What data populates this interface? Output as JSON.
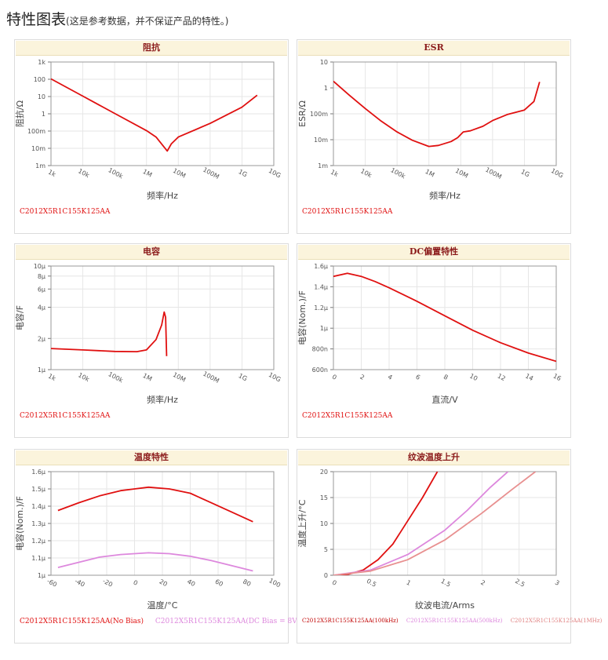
{
  "page": {
    "title": "特性图表",
    "subtitle": "(这是参考数据，并不保证产品的特性。)"
  },
  "chart_data": [
    {
      "id": "impedance",
      "type": "line",
      "title": "阻抗",
      "xlabel": "频率/Hz",
      "ylabel": "阻抗/Ω",
      "xscale": "log",
      "yscale": "log",
      "xlim": [
        1000,
        10000000000
      ],
      "ylim": [
        0.001,
        1000
      ],
      "xticks": [
        "1k",
        "10k",
        "100k",
        "1M",
        "10M",
        "100M",
        "1G",
        "10G"
      ],
      "yticks": [
        "1m",
        "10m",
        "100m",
        "1",
        "10",
        "100",
        "1k"
      ],
      "grid": true,
      "series": [
        {
          "name": "C2012X5R1C155K125AA",
          "color": "#e01010",
          "x": [
            1000,
            10000,
            100000,
            1000000,
            2000000,
            3500000,
            4500000,
            6000000,
            10000000,
            100000000,
            1000000000,
            3000000000
          ],
          "y": [
            105,
            10.5,
            1.05,
            0.107,
            0.045,
            0.0125,
            0.007,
            0.018,
            0.045,
            0.28,
            2.4,
            12
          ]
        }
      ]
    },
    {
      "id": "esr",
      "type": "line",
      "title": "ESR",
      "xlabel": "频率/Hz",
      "ylabel": "ESR/Ω",
      "xscale": "log",
      "yscale": "log",
      "xlim": [
        1000,
        10000000000
      ],
      "ylim": [
        0.001,
        10
      ],
      "xticks": [
        "1k",
        "10k",
        "100k",
        "1M",
        "10M",
        "100M",
        "1G",
        "10G"
      ],
      "yticks": [
        "1m",
        "10m",
        "100m",
        "1",
        "10"
      ],
      "grid": true,
      "series": [
        {
          "name": "C2012X5R1C155K125AA",
          "color": "#e01010",
          "x": [
            1000,
            3000,
            10000,
            30000,
            100000,
            300000,
            1000000,
            2000000,
            5000000,
            8000000,
            12000000,
            20000000,
            50000000,
            100000000,
            300000000,
            1000000000,
            2000000000,
            3000000000
          ],
          "y": [
            1.8,
            0.55,
            0.16,
            0.055,
            0.02,
            0.0095,
            0.0055,
            0.006,
            0.0085,
            0.012,
            0.02,
            0.022,
            0.033,
            0.055,
            0.095,
            0.14,
            0.3,
            1.7
          ]
        }
      ]
    },
    {
      "id": "capacitance",
      "type": "line",
      "title": "电容",
      "xlabel": "频率/Hz",
      "ylabel": "电容/F",
      "xscale": "log",
      "yscale": "log",
      "xlim": [
        1000,
        10000000000
      ],
      "ylim": [
        1,
        10
      ],
      "xticks": [
        "1k",
        "10k",
        "100k",
        "1M",
        "10M",
        "100M",
        "1G",
        "10G"
      ],
      "yticks": [
        "1μ",
        "2μ",
        "4μ",
        "6μ",
        "8μ",
        "10μ"
      ],
      "grid": true,
      "series": [
        {
          "name": "C2012X5R1C155K125AA",
          "color": "#e01010",
          "x": [
            1000,
            10000,
            100000,
            500000,
            1000000,
            2000000,
            3000000,
            3600000,
            4000000,
            4300000
          ],
          "y": [
            1.6,
            1.55,
            1.5,
            1.49,
            1.55,
            1.95,
            2.7,
            3.6,
            3.2,
            1.35
          ]
        }
      ]
    },
    {
      "id": "dc_bias",
      "type": "line",
      "title": "DC偏置特性",
      "xlabel": "直流/V",
      "ylabel": "电容(Nom.)/F",
      "xlim": [
        0,
        16
      ],
      "ylim": [
        0.6,
        1.6
      ],
      "xticks": [
        "0",
        "2",
        "4",
        "6",
        "8",
        "10",
        "12",
        "14",
        "16"
      ],
      "yticks": [
        "600n",
        "800n",
        "1μ",
        "1.2μ",
        "1.4μ",
        "1.6μ"
      ],
      "grid": true,
      "series": [
        {
          "name": "C2012X5R1C155K125AA",
          "color": "#e01010",
          "x": [
            0,
            1,
            2,
            3,
            4,
            6,
            8,
            10,
            12,
            14,
            16
          ],
          "y": [
            1.5,
            1.53,
            1.5,
            1.45,
            1.39,
            1.26,
            1.12,
            0.98,
            0.86,
            0.76,
            0.68
          ]
        }
      ]
    },
    {
      "id": "temperature",
      "type": "line",
      "title": "温度特性",
      "xlabel": "温度/°C",
      "ylabel": "电容(Nom.)/F",
      "xlim": [
        -60,
        100
      ],
      "ylim": [
        1.0,
        1.6
      ],
      "xticks": [
        "-60",
        "-40",
        "-20",
        "0",
        "20",
        "40",
        "60",
        "80",
        "100"
      ],
      "yticks": [
        "1μ",
        "1.1μ",
        "1.2μ",
        "1.3μ",
        "1.4μ",
        "1.5μ",
        "1.6μ"
      ],
      "grid": true,
      "series": [
        {
          "name": "C2012X5R1C155K125AA(No Bias)",
          "color": "#e01010",
          "x": [
            -55,
            -40,
            -25,
            -10,
            0,
            10,
            25,
            40,
            55,
            70,
            85
          ],
          "y": [
            1.375,
            1.42,
            1.46,
            1.49,
            1.5,
            1.51,
            1.5,
            1.475,
            1.42,
            1.365,
            1.31
          ]
        },
        {
          "name": "C2012X5R1C155K125AA(DC Bias = 8V )",
          "color": "#dd88dd",
          "x": [
            -55,
            -40,
            -25,
            -10,
            0,
            10,
            25,
            40,
            55,
            70,
            85
          ],
          "y": [
            1.045,
            1.075,
            1.105,
            1.12,
            1.125,
            1.13,
            1.125,
            1.11,
            1.085,
            1.055,
            1.025
          ]
        }
      ]
    },
    {
      "id": "ripple",
      "type": "line",
      "title": "纹波温度上升",
      "xlabel": "纹波电流/Arms",
      "ylabel": "温度上升/°C",
      "xlim": [
        0,
        3
      ],
      "ylim": [
        0,
        20
      ],
      "xticks": [
        "0",
        "0.5",
        "1",
        "1.5",
        "2",
        "2.5",
        "3"
      ],
      "yticks": [
        "0",
        "5",
        "10",
        "15",
        "20"
      ],
      "grid": true,
      "series": [
        {
          "name": "C2012X5R1C155K125AA(100kHz)",
          "color": "#e01010",
          "x": [
            0,
            0.2,
            0.4,
            0.6,
            0.8,
            1.0,
            1.2,
            1.4
          ],
          "y": [
            0,
            0.2,
            1.0,
            3.0,
            6.0,
            10.5,
            15.0,
            20.0
          ]
        },
        {
          "name": "C2012X5R1C155K125AA(500kHz)",
          "color": "#dd88dd",
          "x": [
            0,
            0.5,
            1.0,
            1.5,
            1.8,
            2.1,
            2.35
          ],
          "y": [
            0,
            1.0,
            4.0,
            8.7,
            12.5,
            16.8,
            20.0
          ]
        },
        {
          "name": "C2012X5R1C155K125AA(1MHz)",
          "color": "#e89090",
          "x": [
            0,
            0.5,
            1.0,
            1.5,
            2.0,
            2.4,
            2.72
          ],
          "y": [
            0,
            0.8,
            3.0,
            6.8,
            12.0,
            16.5,
            20.0
          ]
        }
      ]
    }
  ]
}
